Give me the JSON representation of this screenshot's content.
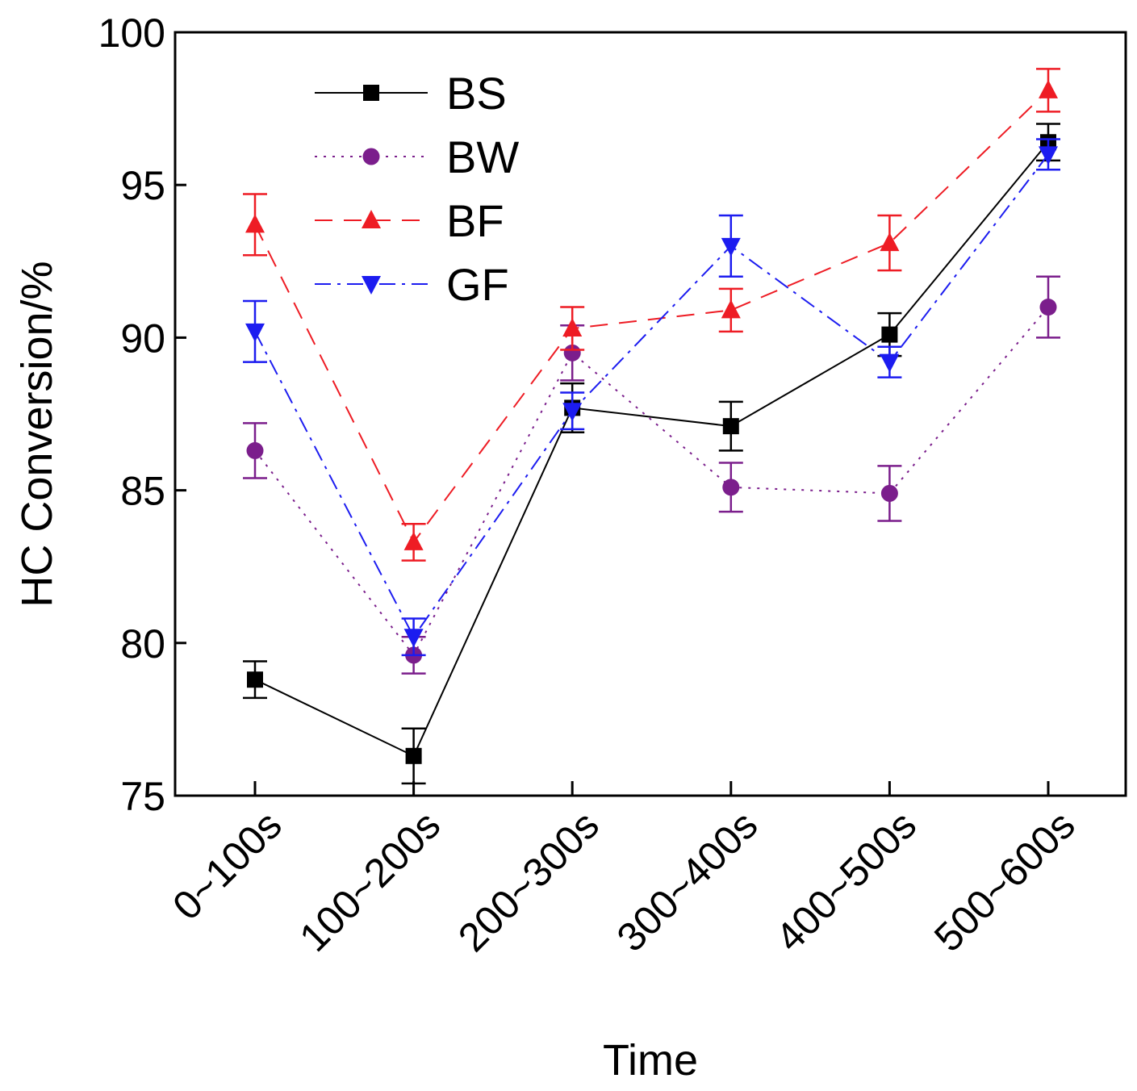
{
  "chart_data": {
    "type": "line",
    "title": "",
    "xlabel": "Time",
    "ylabel": "HC Conversion/%",
    "categories": [
      "0~100s",
      "100~200s",
      "200~300s",
      "300~400s",
      "400~500s",
      "500~600s"
    ],
    "ylim": [
      75,
      100
    ],
    "yticks": [
      75,
      80,
      85,
      90,
      95,
      100
    ],
    "ytick_labels": [
      "75",
      "80",
      "85",
      "90",
      "95",
      "100"
    ],
    "grid": false,
    "legend_position": "top-left",
    "series": [
      {
        "name": "BS",
        "color": "#000000",
        "line_style": "solid",
        "marker": "square",
        "values": [
          78.8,
          76.3,
          87.7,
          87.1,
          90.1,
          96.4
        ],
        "errors": [
          0.6,
          0.9,
          0.8,
          0.8,
          0.7,
          0.6
        ]
      },
      {
        "name": "BW",
        "color": "#7b1e8c",
        "line_style": "dotted",
        "marker": "circle",
        "values": [
          86.3,
          79.6,
          89.5,
          85.1,
          84.9,
          91.0
        ],
        "errors": [
          0.9,
          0.6,
          0.9,
          0.8,
          0.9,
          1.0
        ]
      },
      {
        "name": "BF",
        "color": "#ee1c24",
        "line_style": "dashed",
        "marker": "triangle-up",
        "values": [
          93.7,
          83.3,
          90.3,
          90.9,
          93.1,
          98.1
        ],
        "errors": [
          1.0,
          0.6,
          0.7,
          0.7,
          0.9,
          0.7
        ]
      },
      {
        "name": "GF",
        "color": "#1c1cf0",
        "line_style": "dash-dot",
        "marker": "triangle-down",
        "values": [
          90.2,
          80.2,
          87.6,
          93.0,
          89.2,
          96.0
        ],
        "errors": [
          1.0,
          0.6,
          0.6,
          1.0,
          0.5,
          0.5
        ]
      }
    ]
  }
}
